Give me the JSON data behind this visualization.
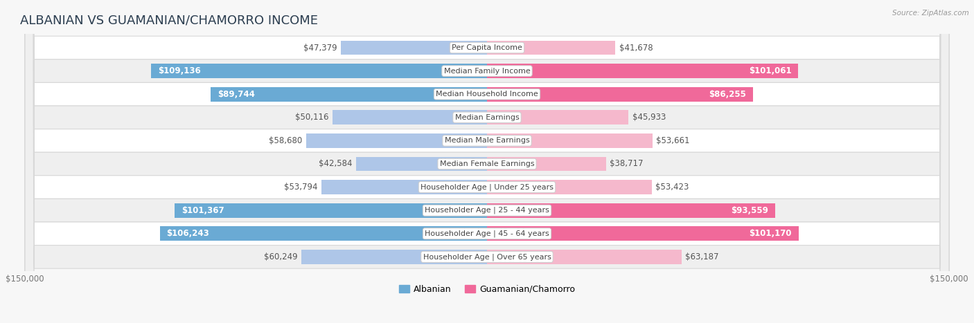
{
  "title": "ALBANIAN VS GUAMANIAN/CHAMORRO INCOME",
  "source": "Source: ZipAtlas.com",
  "categories": [
    "Per Capita Income",
    "Median Family Income",
    "Median Household Income",
    "Median Earnings",
    "Median Male Earnings",
    "Median Female Earnings",
    "Householder Age | Under 25 years",
    "Householder Age | 25 - 44 years",
    "Householder Age | 45 - 64 years",
    "Householder Age | Over 65 years"
  ],
  "albanian_values": [
    47379,
    109136,
    89744,
    50116,
    58680,
    42584,
    53794,
    101367,
    106243,
    60249
  ],
  "guamanian_values": [
    41678,
    101061,
    86255,
    45933,
    53661,
    38717,
    53423,
    93559,
    101170,
    63187
  ],
  "albanian_labels": [
    "$47,379",
    "$109,136",
    "$89,744",
    "$50,116",
    "$58,680",
    "$42,584",
    "$53,794",
    "$101,367",
    "$106,243",
    "$60,249"
  ],
  "guamanian_labels": [
    "$41,678",
    "$101,061",
    "$86,255",
    "$45,933",
    "$53,661",
    "$38,717",
    "$53,423",
    "$93,559",
    "$101,170",
    "$63,187"
  ],
  "albanian_color_light": "#aec6e8",
  "albanian_color_dark": "#6aaad4",
  "guamanian_color_light": "#f5b8cc",
  "guamanian_color_dark": "#f0699a",
  "max_value": 150000,
  "bar_height": 0.62,
  "bg_color": "#f7f7f7",
  "row_bg_even": "#ffffff",
  "row_bg_odd": "#efefef",
  "row_border": "#d8d8d8",
  "threshold_solid": 75000,
  "title_fontsize": 13,
  "label_fontsize": 8.5,
  "cat_fontsize": 8,
  "axis_label_fontsize": 8.5,
  "legend_fontsize": 9
}
